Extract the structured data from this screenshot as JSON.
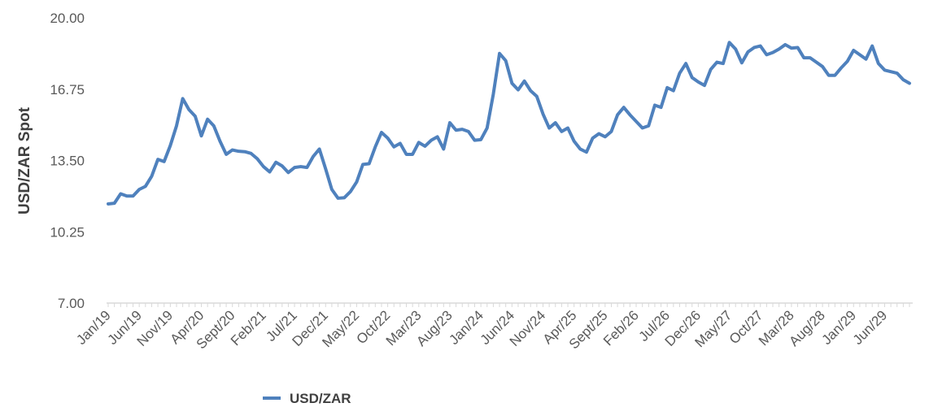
{
  "chart_data": {
    "type": "line",
    "title": "",
    "xlabel": "",
    "ylabel": "USD/ZAR Spot",
    "ylim": [
      7.0,
      20.0
    ],
    "y_ticks": [
      "7.00",
      "10.25",
      "13.50",
      "16.75",
      "20.00"
    ],
    "x_tick_labels": [
      "Jan/19",
      "Jun/19",
      "Nov/19",
      "Apr/20",
      "Sept/20",
      "Feb/21",
      "Jul/21",
      "Dec/21",
      "May/22",
      "Oct/22",
      "Mar/23",
      "Aug/23",
      "Jan/24",
      "Jun/24",
      "Nov/24",
      "Apr/25",
      "Sept/25",
      "Feb/26",
      "Jul/26",
      "Dec/26",
      "May/27",
      "Oct/27",
      "Mar/28",
      "Aug/28",
      "Jan/29",
      "Jun/29"
    ],
    "grid": false,
    "legend_position": "bottom-left",
    "colors": {
      "line": "#4f81bd",
      "axis": "#d9d9d9",
      "text": "#595959"
    },
    "series": [
      {
        "name": "USD/ZAR",
        "values": [
          11.52,
          11.55,
          11.98,
          11.88,
          11.88,
          12.18,
          12.32,
          12.78,
          13.55,
          13.45,
          14.18,
          15.08,
          16.32,
          15.82,
          15.52,
          14.62,
          15.38,
          15.08,
          14.38,
          13.78,
          13.98,
          13.92,
          13.9,
          13.82,
          13.58,
          13.22,
          12.98,
          13.42,
          13.25,
          12.95,
          13.18,
          13.22,
          13.18,
          13.68,
          14.02,
          13.12,
          12.18,
          11.78,
          11.8,
          12.08,
          12.52,
          13.32,
          13.35,
          14.12,
          14.78,
          14.52,
          14.12,
          14.28,
          13.78,
          13.78,
          14.32,
          14.15,
          14.42,
          14.58,
          14.02,
          15.22,
          14.88,
          14.92,
          14.82,
          14.42,
          14.45,
          14.98,
          16.52,
          18.38,
          18.05,
          17.02,
          16.72,
          17.12,
          16.68,
          16.42,
          15.62,
          14.98,
          15.22,
          14.82,
          14.98,
          14.38,
          14.02,
          13.88,
          14.52,
          14.72,
          14.58,
          14.82,
          15.58,
          15.92,
          15.58,
          15.28,
          14.98,
          15.08,
          16.02,
          15.92,
          16.82,
          16.68,
          17.48,
          17.92,
          17.28,
          17.08,
          16.92,
          17.65,
          17.98,
          17.92,
          18.88,
          18.58,
          17.95,
          18.45,
          18.65,
          18.72,
          18.32,
          18.42,
          18.58,
          18.78,
          18.62,
          18.65,
          18.18,
          18.18,
          17.98,
          17.78,
          17.38,
          17.38,
          17.72,
          18.02,
          18.52,
          18.32,
          18.12,
          18.72,
          17.92,
          17.62,
          17.55,
          17.48,
          17.18,
          17.02
        ]
      }
    ]
  }
}
